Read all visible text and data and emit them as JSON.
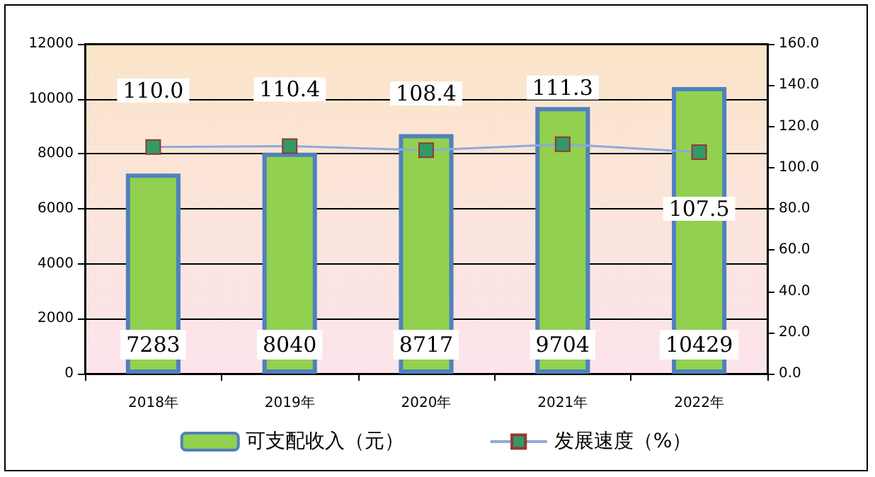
{
  "chart_data": {
    "type": "bar",
    "categories": [
      "2018年",
      "2019年",
      "2020年",
      "2021年",
      "2022年"
    ],
    "series": [
      {
        "name": "可支配收入（元）",
        "type": "bar",
        "color": "#92d050",
        "values": [
          7283,
          8040,
          8717,
          9704,
          10429
        ],
        "value_labels": [
          "7283",
          "8040",
          "8717",
          "9704",
          "10429"
        ]
      },
      {
        "name": "发展速度（%）",
        "type": "line",
        "axis": "y2",
        "color": "#339966",
        "marker": "square",
        "values": [
          110.0,
          110.4,
          108.4,
          111.3,
          107.5
        ],
        "value_labels": [
          "110.0",
          "110.4",
          "108.4",
          "111.3",
          "107.5"
        ]
      }
    ],
    "ylim": [
      0,
      12000
    ],
    "yticks": [
      0,
      2000,
      4000,
      6000,
      8000,
      10000,
      12000
    ],
    "y2lim": [
      0,
      160
    ],
    "y2ticks": [
      {
        "value": 0,
        "label": "0.0"
      },
      {
        "value": 20,
        "label": "20.0"
      },
      {
        "value": 40,
        "label": "40.0"
      },
      {
        "value": 60,
        "label": "60.0"
      },
      {
        "value": 80,
        "label": "80.0"
      },
      {
        "value": 100,
        "label": "100.0"
      },
      {
        "value": 120,
        "label": "120.0"
      },
      {
        "value": 140,
        "label": "140.0"
      },
      {
        "value": 160,
        "label": "160.0"
      }
    ],
    "grid": "y",
    "legend": "bottom"
  }
}
